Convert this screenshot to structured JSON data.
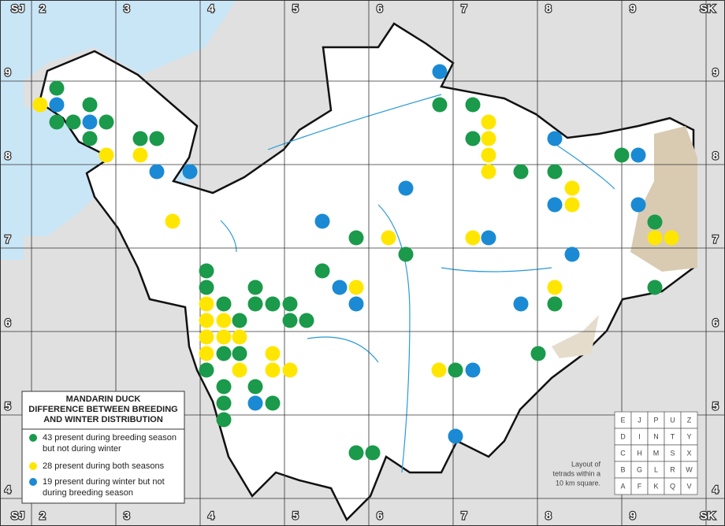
{
  "grid": {
    "top": [
      "SJ",
      "2",
      "3",
      "4",
      "5",
      "6",
      "7",
      "8",
      "9",
      "SK"
    ],
    "side": [
      "9",
      "8",
      "7",
      "6",
      "5",
      "4"
    ],
    "bottom": [
      "SJ",
      "2",
      "3",
      "4",
      "5",
      "6",
      "7",
      "8",
      "9",
      "SK"
    ]
  },
  "legend": {
    "title": [
      "MANDARIN DUCK",
      "DIFFERENCE BETWEEN BREEDING",
      "AND WINTER DISTRIBUTION"
    ],
    "items": [
      {
        "lines": [
          "43 present during breeding season",
          "but not during winter"
        ]
      },
      {
        "lines": [
          "28 present during both seasons"
        ]
      },
      {
        "lines": [
          "19 present during winter but not",
          "during breeding season"
        ]
      }
    ]
  },
  "tetrad_key": {
    "rows": [
      [
        "E",
        "J",
        "P",
        "U",
        "Z"
      ],
      [
        "D",
        "I",
        "N",
        "T",
        "Y"
      ],
      [
        "C",
        "H",
        "M",
        "S",
        "X"
      ],
      [
        "B",
        "G",
        "L",
        "R",
        "W"
      ],
      [
        "A",
        "F",
        "K",
        "Q",
        "V"
      ]
    ],
    "caption": [
      "Layout of",
      "tetrads within a",
      "10 km square."
    ]
  }
}
